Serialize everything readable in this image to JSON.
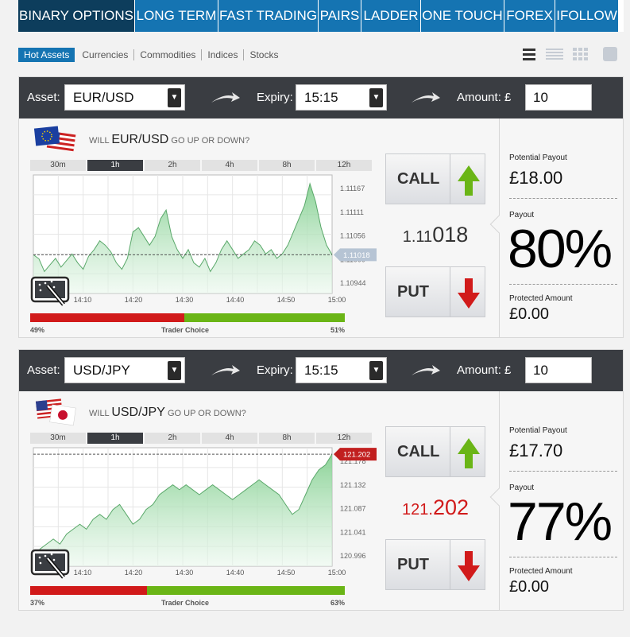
{
  "nav": {
    "tabs": [
      {
        "label": "BINARY OPTIONS"
      },
      {
        "label": "LONG TERM"
      },
      {
        "label": "FAST TRADING"
      },
      {
        "label": "PAIRS"
      },
      {
        "label": "LADDER"
      },
      {
        "label": "ONE TOUCH"
      },
      {
        "label": "FOREX"
      },
      {
        "label": "IFOLLOW"
      }
    ]
  },
  "filters": [
    "Hot Assets",
    "Currencies",
    "Commodities",
    "Indices",
    "Stocks"
  ],
  "view_icons": [
    "list-view-icon",
    "compact-list-icon",
    "grid-view-icon",
    "single-view-icon"
  ],
  "labels": {
    "asset": "Asset:",
    "expiry": "Expiry:",
    "amount": "Amount: £",
    "will": "WILL",
    "go_up_down": "GO UP OR DOWN?",
    "trader_choice": "Trader Choice",
    "call": "CALL",
    "put": "PUT",
    "potential_payout": "Potential Payout",
    "payout": "Payout",
    "protected_amount": "Protected Amount"
  },
  "timeframes": [
    "30m",
    "1h",
    "2h",
    "4h",
    "8h",
    "12h"
  ],
  "colors": {
    "accent": "#1574b2",
    "up": "#6ab516",
    "down": "#d11a1a"
  },
  "panels": [
    {
      "asset": "EUR/USD",
      "expiry": "15:15",
      "amount": "10",
      "active_timeframe": "1h",
      "price_small": "1.11",
      "price_large": "018",
      "price_color": "#333333",
      "sentiment_put": "49%",
      "sentiment_call": "51%",
      "sentiment_put_value": 49,
      "potential_payout": "£18.00",
      "payout_pct": "80%",
      "protected": "£0.00",
      "chart_data": {
        "type": "area",
        "x_ticks": [
          "14:10",
          "14:20",
          "14:30",
          "14:40",
          "14:50",
          "15:00"
        ],
        "y_ticks": [
          "1.11167",
          "1.11111",
          "1.11056",
          "1.11000",
          "1.10944"
        ],
        "ylim": [
          1.1093,
          1.112
        ],
        "current_label": "1.11018",
        "current": 1.11018,
        "values": [
          1.11018,
          1.11009,
          1.1098,
          1.10995,
          1.1101,
          1.1099,
          1.11005,
          1.1102,
          1.11,
          1.10985,
          1.11015,
          1.1103,
          1.1105,
          1.1104,
          1.11025,
          1.11,
          1.10985,
          1.1101,
          1.1107,
          1.1108,
          1.1106,
          1.1104,
          1.1106,
          1.111,
          1.1112,
          1.1106,
          1.1103,
          1.1101,
          1.1103,
          1.11,
          1.1099,
          1.1101,
          1.1098,
          1.11,
          1.1103,
          1.1105,
          1.1103,
          1.1101,
          1.1102,
          1.1103,
          1.1105,
          1.1104,
          1.1102,
          1.1103,
          1.1101,
          1.1102,
          1.1104,
          1.1107,
          1.111,
          1.1113,
          1.1118,
          1.1114,
          1.1108,
          1.1104,
          1.11018
        ]
      }
    },
    {
      "asset": "USD/JPY",
      "expiry": "15:15",
      "amount": "10",
      "active_timeframe": "1h",
      "price_small": "121.",
      "price_large": "202",
      "price_color": "#d11a1a",
      "sentiment_put": "37%",
      "sentiment_call": "63%",
      "sentiment_put_value": 37,
      "potential_payout": "£17.70",
      "payout_pct": "77%",
      "protected": "£0.00",
      "chart_data": {
        "type": "area",
        "x_ticks": [
          "14:10",
          "14:20",
          "14:30",
          "14:40",
          "14:50",
          "15:00"
        ],
        "y_ticks": [
          "121.178",
          "121.132",
          "121.087",
          "121.041",
          "120.996"
        ],
        "ylim": [
          120.975,
          121.215
        ],
        "current_label": "121.202",
        "current": 121.202,
        "values": [
          120.99,
          121.01,
          121.02,
          121.03,
          121.02,
          121.04,
          121.05,
          121.06,
          121.05,
          121.07,
          121.08,
          121.07,
          121.09,
          121.1,
          121.08,
          121.06,
          121.07,
          121.09,
          121.1,
          121.12,
          121.13,
          121.14,
          121.13,
          121.14,
          121.13,
          121.12,
          121.13,
          121.14,
          121.13,
          121.12,
          121.11,
          121.12,
          121.13,
          121.14,
          121.15,
          121.14,
          121.13,
          121.12,
          121.1,
          121.08,
          121.09,
          121.12,
          121.15,
          121.17,
          121.18,
          121.202
        ]
      }
    }
  ]
}
